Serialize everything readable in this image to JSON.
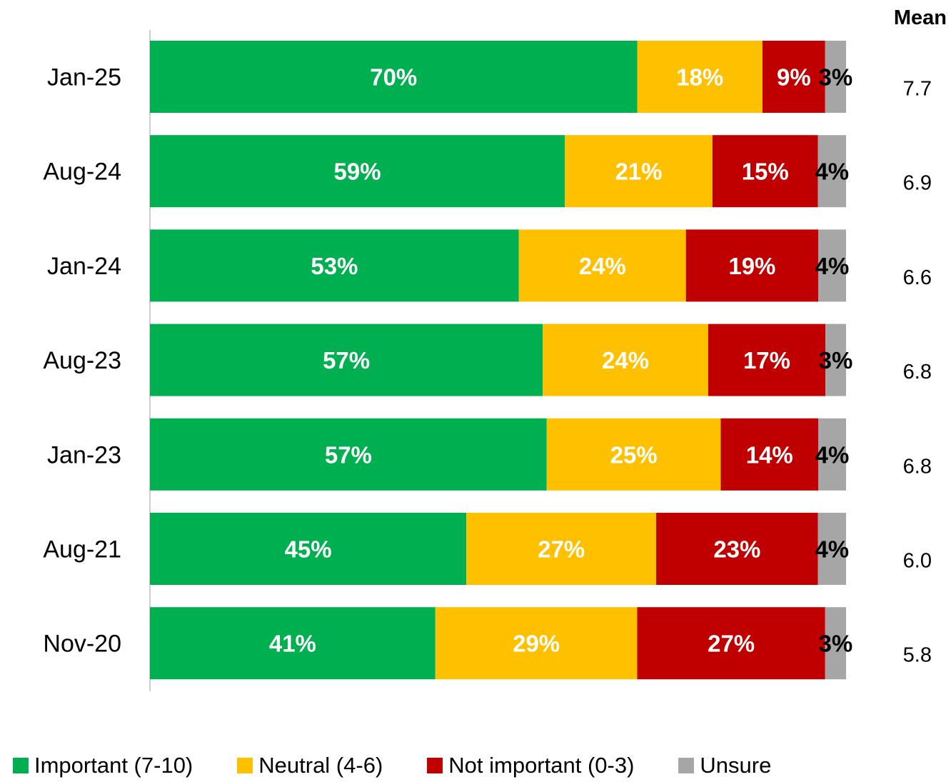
{
  "chart_data": {
    "type": "bar",
    "orientation": "horizontal",
    "stacked": true,
    "percent": true,
    "categories": [
      "Jan-25",
      "Aug-24",
      "Jan-24",
      "Aug-23",
      "Jan-23",
      "Aug-21",
      "Nov-20"
    ],
    "series": [
      {
        "name": "Important (7-10)",
        "color": "#00B050",
        "label_color": "#FFFFFF",
        "values": [
          70,
          59,
          53,
          57,
          57,
          45,
          41
        ]
      },
      {
        "name": "Neutral (4-6)",
        "color": "#FFC000",
        "label_color": "#FFFFFF",
        "values": [
          18,
          21,
          24,
          24,
          25,
          27,
          29
        ]
      },
      {
        "name": "Not important (0-3)",
        "color": "#C00000",
        "label_color": "#FFFFFF",
        "values": [
          9,
          15,
          19,
          17,
          14,
          23,
          27
        ]
      },
      {
        "name": "Unsure",
        "color": "#A6A6A6",
        "label_color": "#000000",
        "values": [
          3,
          4,
          4,
          3,
          4,
          4,
          3
        ]
      }
    ],
    "data_label_suffix": "%",
    "mean_header": "Mean",
    "means": [
      "7.7",
      "6.9",
      "6.6",
      "6.8",
      "6.8",
      "6.0",
      "5.8"
    ],
    "legend_position": "bottom",
    "grid": false
  }
}
